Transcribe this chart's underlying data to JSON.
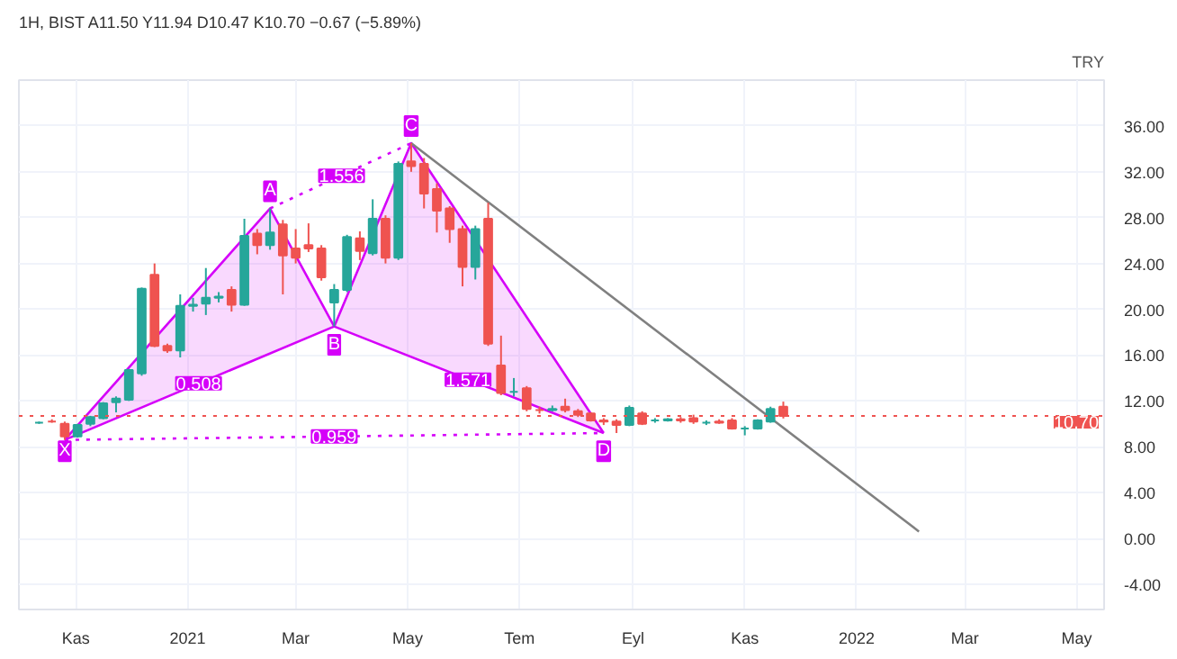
{
  "chart_data": {
    "type": "candlestick",
    "title": "1H, BIST  A11.50 Y11.94 D10.47 K10.70 −0.67 (−5.89%)",
    "ylabel": "TRY",
    "x": [
      "2020-10-12",
      "2020-10-19",
      "2020-10-26",
      "2020-11-02",
      "2020-11-09",
      "2020-11-16",
      "2020-11-23",
      "2020-11-30",
      "2020-12-07",
      "2020-12-14",
      "2020-12-21",
      "2020-12-28",
      "2021-01-04",
      "2021-01-11",
      "2021-01-18",
      "2021-01-25",
      "2021-02-01",
      "2021-02-08",
      "2021-02-15",
      "2021-02-22",
      "2021-03-01",
      "2021-03-08",
      "2021-03-15",
      "2021-03-22",
      "2021-03-29",
      "2021-04-05",
      "2021-04-12",
      "2021-04-19",
      "2021-04-26",
      "2021-05-03",
      "2021-05-10",
      "2021-05-17",
      "2021-05-24",
      "2021-05-31",
      "2021-06-07",
      "2021-06-14",
      "2021-06-21",
      "2021-06-28",
      "2021-07-05",
      "2021-07-12",
      "2021-07-19",
      "2021-07-26",
      "2021-08-02",
      "2021-08-09",
      "2021-08-16",
      "2021-08-23",
      "2021-08-30",
      "2021-09-06",
      "2021-09-13",
      "2021-09-20",
      "2021-09-27",
      "2021-10-04",
      "2021-10-11",
      "2021-10-18",
      "2021-10-25",
      "2021-11-01",
      "2021-11-08",
      "2021-11-15",
      "2021-11-22"
    ],
    "ohlc": [
      [
        10.1,
        10.2,
        10.0,
        10.1
      ],
      [
        10.2,
        10.4,
        10.1,
        10.2
      ],
      [
        10.0,
        10.2,
        8.6,
        8.9
      ],
      [
        8.9,
        10.0,
        8.8,
        9.9
      ],
      [
        10.0,
        10.7,
        9.8,
        10.6
      ],
      [
        10.5,
        11.9,
        10.4,
        11.8
      ],
      [
        11.9,
        12.4,
        11.0,
        12.2
      ],
      [
        12.1,
        14.8,
        12.0,
        14.7
      ],
      [
        14.4,
        21.9,
        14.2,
        21.8
      ],
      [
        23.0,
        24.0,
        16.7,
        16.8
      ],
      [
        16.8,
        17.0,
        16.2,
        16.4
      ],
      [
        16.4,
        21.3,
        15.8,
        20.3
      ],
      [
        20.3,
        21.0,
        19.8,
        20.4
      ],
      [
        20.5,
        23.6,
        19.5,
        21.0
      ],
      [
        21.0,
        21.5,
        20.6,
        21.1
      ],
      [
        21.7,
        22.0,
        19.8,
        20.4
      ],
      [
        20.4,
        27.9,
        20.3,
        26.4
      ],
      [
        26.6,
        27.0,
        24.8,
        25.6
      ],
      [
        25.6,
        28.8,
        25.2,
        26.7
      ],
      [
        27.4,
        27.8,
        21.3,
        24.7
      ],
      [
        25.3,
        27.0,
        24.0,
        24.5
      ],
      [
        25.6,
        27.5,
        25.0,
        25.3
      ],
      [
        25.3,
        25.6,
        22.5,
        22.8
      ],
      [
        20.6,
        22.2,
        18.5,
        21.7
      ],
      [
        21.7,
        26.5,
        21.5,
        26.3
      ],
      [
        26.2,
        26.8,
        24.3,
        25.1
      ],
      [
        24.9,
        29.6,
        24.7,
        27.9
      ],
      [
        27.9,
        28.2,
        24.0,
        24.5
      ],
      [
        24.5,
        32.9,
        24.3,
        32.7
      ],
      [
        32.9,
        34.5,
        32.0,
        32.5
      ],
      [
        32.7,
        33.2,
        28.8,
        30.1
      ],
      [
        30.5,
        31.0,
        26.7,
        28.6
      ],
      [
        28.8,
        29.0,
        25.8,
        27.0
      ],
      [
        27.0,
        27.3,
        22.0,
        23.7
      ],
      [
        23.7,
        27.3,
        22.6,
        27.0
      ],
      [
        27.9,
        29.3,
        16.8,
        17.0
      ],
      [
        15.1,
        17.7,
        12.5,
        12.7
      ],
      [
        12.8,
        14.0,
        12.4,
        12.8
      ],
      [
        13.1,
        13.3,
        11.1,
        11.3
      ],
      [
        11.2,
        11.5,
        10.9,
        11.2
      ],
      [
        11.2,
        11.6,
        11.1,
        11.3
      ],
      [
        11.5,
        12.2,
        11.0,
        11.2
      ],
      [
        11.1,
        11.3,
        10.6,
        10.8
      ],
      [
        10.9,
        11.0,
        10.2,
        10.3
      ],
      [
        10.3,
        10.5,
        9.9,
        10.2
      ],
      [
        10.2,
        10.4,
        9.2,
        9.9
      ],
      [
        9.9,
        11.6,
        9.8,
        11.4
      ],
      [
        10.9,
        11.1,
        9.9,
        10.0
      ],
      [
        10.3,
        10.5,
        10.1,
        10.3
      ],
      [
        10.3,
        10.5,
        10.2,
        10.4
      ],
      [
        10.4,
        10.6,
        10.1,
        10.3
      ],
      [
        10.5,
        10.8,
        10.0,
        10.2
      ],
      [
        10.1,
        10.3,
        9.9,
        10.1
      ],
      [
        10.2,
        10.4,
        10.0,
        10.1
      ],
      [
        10.3,
        10.5,
        9.5,
        9.6
      ],
      [
        9.6,
        9.8,
        9.0,
        9.6
      ],
      [
        9.6,
        10.4,
        9.5,
        10.3
      ],
      [
        10.2,
        11.5,
        10.1,
        11.3
      ],
      [
        11.5,
        11.94,
        10.47,
        10.7
      ]
    ],
    "colors": [
      "#26a69a",
      "#ef5350",
      "#ef5350",
      "#26a69a",
      "#26a69a",
      "#26a69a",
      "#26a69a",
      "#26a69a",
      "#26a69a",
      "#ef5350",
      "#ef5350",
      "#26a69a",
      "#26a69a",
      "#26a69a",
      "#26a69a",
      "#ef5350",
      "#26a69a",
      "#ef5350",
      "#26a69a",
      "#ef5350",
      "#ef5350",
      "#ef5350",
      "#ef5350",
      "#26a69a",
      "#26a69a",
      "#ef5350",
      "#26a69a",
      "#ef5350",
      "#26a69a",
      "#ef5350",
      "#ef5350",
      "#ef5350",
      "#ef5350",
      "#ef5350",
      "#26a69a",
      "#ef5350",
      "#ef5350",
      "#26a69a",
      "#ef5350",
      "#ef5350",
      "#26a69a",
      "#ef5350",
      "#ef5350",
      "#ef5350",
      "#ef5350",
      "#ef5350",
      "#26a69a",
      "#ef5350",
      "#26a69a",
      "#26a69a",
      "#ef5350",
      "#ef5350",
      "#26a69a",
      "#ef5350",
      "#ef5350",
      "#26a69a",
      "#26a69a",
      "#26a69a",
      "#ef5350"
    ],
    "series": [
      {
        "type": "line",
        "x": [
          "2020-10-26",
          "2021-02-15",
          "2021-03-22",
          "2021-05-03",
          "2021-08-16"
        ],
        "values": [
          8.6,
          28.8,
          18.5,
          34.5,
          9.2
        ],
        "lower": [
          8.6,
          16.14,
          18.5,
          15.84,
          9.2
        ],
        "upper": [
          8.6,
          28.8,
          18.5,
          34.5,
          9.2
        ],
        "color": "#d500f9",
        "line_style": "solid"
      },
      {
        "type": "line",
        "x": [
          "2020-10-26",
          "2021-03-22",
          "2021-08-16"
        ],
        "values": [
          8.6,
          18.5,
          9.2
        ],
        "color": "#d500f9",
        "line_style": "solid"
      },
      {
        "type": "line",
        "x": [
          "2020-10-26",
          "2021-08-16"
        ],
        "values": [
          8.6,
          9.2
        ],
        "color": "#d500f9",
        "line_style": "dotted"
      },
      {
        "type": "line",
        "x": [
          "2021-02-15",
          "2021-05-03"
        ],
        "values": [
          28.8,
          34.5
        ],
        "color": "#d500f9",
        "line_style": "dotted"
      },
      {
        "type": "line",
        "x": [
          "2021-05-03",
          "2022-02-04"
        ],
        "values": [
          34.5,
          0.6
        ],
        "color": "#808080",
        "line_style": "solid"
      }
    ],
    "ref_lines": [
      {
        "axis": "y",
        "value": 10.7,
        "label": "10.70",
        "color": "#ef5350",
        "line_style": "dotted"
      }
    ],
    "annotations": [
      {
        "text": "X",
        "x": "2020-10-26",
        "y": 7.6
      },
      {
        "text": "A",
        "x": "2021-02-15",
        "y": 30.3
      },
      {
        "text": "B",
        "x": "2021-03-22",
        "y": 16.9
      },
      {
        "text": "C",
        "x": "2021-05-03",
        "y": 36.0
      },
      {
        "text": "D",
        "x": "2021-08-16",
        "y": 7.6
      },
      {
        "text": "1.556",
        "x": "2021-03-26",
        "y": 31.65
      },
      {
        "text": "0.508",
        "x": "2021-01-07",
        "y": 13.55
      },
      {
        "text": "1.571",
        "x": "2021-06-03",
        "y": 13.85
      },
      {
        "text": "0.959",
        "x": "2021-03-22",
        "y": 8.9
      }
    ],
    "xlim": [
      "2020-10-01",
      "2022-05-16"
    ],
    "xticks": [
      {
        "value": "2020-11-01",
        "label": "Kas"
      },
      {
        "value": "2021-01-01",
        "label": "2021"
      },
      {
        "value": "2021-03-01",
        "label": "Mar"
      },
      {
        "value": "2021-05-01",
        "label": "May"
      },
      {
        "value": "2021-07-01",
        "label": "Tem"
      },
      {
        "value": "2021-09-01",
        "label": "Eyl"
      },
      {
        "value": "2021-11-01",
        "label": "Kas"
      },
      {
        "value": "2022-01-01",
        "label": "2022"
      },
      {
        "value": "2022-03-01",
        "label": "Mar"
      },
      {
        "value": "2022-05-01",
        "label": "May"
      }
    ],
    "ylim": [
      -6.2,
      40
    ],
    "yticks": [
      {
        "value": -4,
        "label": "-4.00"
      },
      {
        "value": 0,
        "label": "0.00"
      },
      {
        "value": 4,
        "label": "4.00"
      },
      {
        "value": 8,
        "label": "8.00"
      },
      {
        "value": 12,
        "label": "12.00"
      },
      {
        "value": 16,
        "label": "16.00"
      },
      {
        "value": 20,
        "label": "20.00"
      },
      {
        "value": 24,
        "label": "24.00"
      },
      {
        "value": 28,
        "label": "28.00"
      },
      {
        "value": 32,
        "label": "32.00"
      },
      {
        "value": 36,
        "label": "36.00"
      }
    ],
    "grid": true
  }
}
